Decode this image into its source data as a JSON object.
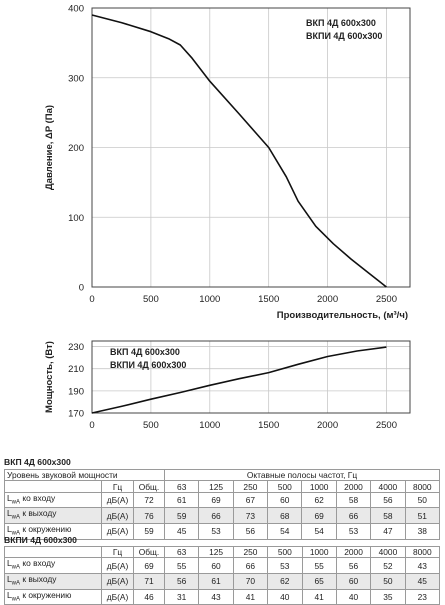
{
  "chart_data": [
    {
      "type": "line",
      "ylabel": "Давление, ΔP (Па)",
      "xlabel": "Производительность, (м³/ч)",
      "xlim": [
        0,
        2700
      ],
      "ylim": [
        0,
        400
      ],
      "x_ticks": [
        0,
        500,
        1000,
        1500,
        2000,
        2500
      ],
      "y_ticks": [
        0,
        100,
        200,
        300,
        400
      ],
      "grid": true,
      "legend": "top-right",
      "series": [
        {
          "name": "ВКП 4Д 600х300 / ВКПИ 4Д 600х300",
          "x": [
            0,
            250,
            500,
            650,
            750,
            850,
            1000,
            1250,
            1500,
            1650,
            1750,
            1900,
            2050,
            2200,
            2350,
            2500
          ],
          "y": [
            390,
            379,
            366,
            356,
            347,
            328,
            295,
            248,
            200,
            158,
            123,
            87,
            62,
            40,
            20,
            0
          ]
        }
      ],
      "legend_entries": [
        "ВКП 4Д 600х300",
        "ВКПИ 4Д 600х300"
      ]
    },
    {
      "type": "line",
      "ylabel": "Мощность, (Вт)",
      "xlabel": "",
      "xlim": [
        0,
        2700
      ],
      "ylim": [
        170,
        235
      ],
      "x_ticks": [
        0,
        500,
        1000,
        1500,
        2000,
        2500
      ],
      "y_ticks": [
        170,
        190,
        210,
        230
      ],
      "grid": true,
      "legend": "top-left",
      "series": [
        {
          "name": "ВКП 4Д 600х300 / ВКПИ 4Д 600х300",
          "x": [
            0,
            250,
            500,
            750,
            1000,
            1250,
            1500,
            1750,
            2000,
            2250,
            2500
          ],
          "y": [
            170,
            176,
            182.5,
            188.5,
            195,
            201,
            206.5,
            214,
            221,
            226,
            229.5
          ]
        }
      ],
      "legend_entries": [
        "ВКП 4Д 600х300",
        "ВКПИ 4Д 600х300"
      ]
    }
  ],
  "tables": [
    {
      "title": "ВКП 4Д 600х300",
      "header1": [
        "Уровень звуковой мощности",
        "",
        "",
        "Октавные полосы частот, Гц"
      ],
      "header2": [
        "",
        "Гц",
        "Общ.",
        "63",
        "125",
        "250",
        "500",
        "1000",
        "2000",
        "4000",
        "8000"
      ],
      "rows": [
        {
          "label": "LwA ко входу",
          "unit": "дБ(А)",
          "values": [
            "72",
            "61",
            "69",
            "67",
            "60",
            "62",
            "58",
            "56",
            "50"
          ]
        },
        {
          "label": "LwA к выходу",
          "unit": "дБ(А)",
          "values": [
            "76",
            "59",
            "66",
            "73",
            "68",
            "69",
            "66",
            "58",
            "51"
          ]
        },
        {
          "label": "LwA к окружению",
          "unit": "дБ(А)",
          "values": [
            "59",
            "45",
            "53",
            "56",
            "54",
            "54",
            "53",
            "47",
            "38"
          ]
        }
      ]
    },
    {
      "title": "ВКПИ 4Д 600х300",
      "header2": [
        "",
        "Гц",
        "Общ.",
        "63",
        "125",
        "250",
        "500",
        "1000",
        "2000",
        "4000",
        "8000"
      ],
      "rows": [
        {
          "label": "LwA ко входу",
          "unit": "дБ(А)",
          "values": [
            "69",
            "55",
            "60",
            "66",
            "53",
            "55",
            "56",
            "52",
            "43"
          ]
        },
        {
          "label": "LwA к выходу",
          "unit": "дБ(А)",
          "values": [
            "71",
            "56",
            "61",
            "70",
            "62",
            "65",
            "60",
            "50",
            "45"
          ]
        },
        {
          "label": "LwA к окружению",
          "unit": "дБ(А)",
          "values": [
            "46",
            "31",
            "43",
            "41",
            "40",
            "41",
            "40",
            "35",
            "23"
          ]
        }
      ]
    }
  ],
  "colors": {
    "grid": "#c8c8c8",
    "line": "#111111",
    "axis": "#444444",
    "row_alt": "#e9e9e9"
  }
}
